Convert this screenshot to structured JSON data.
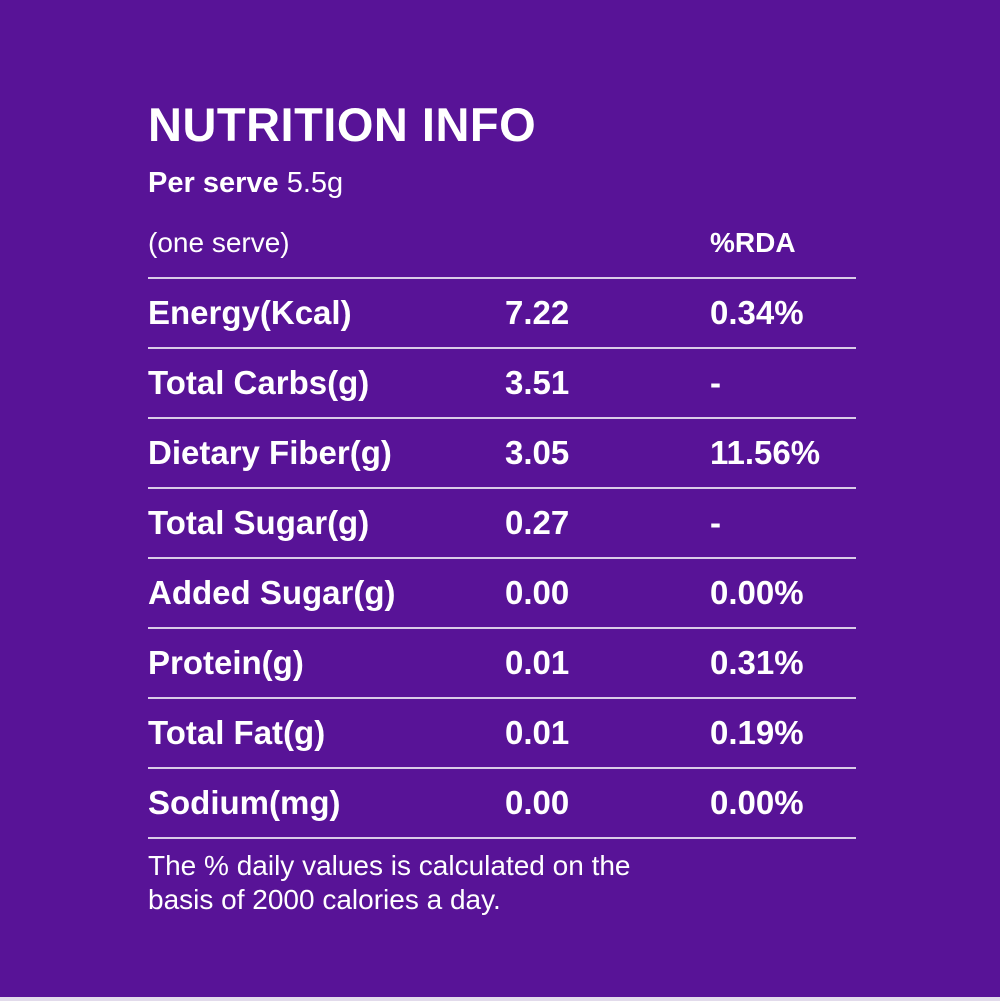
{
  "colors": {
    "background": "#581397",
    "text": "#FFFFFF",
    "divider": "#D9CCE8",
    "bottom_strip": "#E2DBEB"
  },
  "header": {
    "title": "NUTRITION INFO",
    "serve_label": "Per serve",
    "serve_value": "5.5g",
    "serve_note": "(one serve)",
    "rda_column_header": "%RDA"
  },
  "table": {
    "rows": [
      {
        "label": "Energy(Kcal)",
        "value": "7.22",
        "rda": "0.34%"
      },
      {
        "label": "Total Carbs(g)",
        "value": "3.51",
        "rda": "-"
      },
      {
        "label": "Dietary Fiber(g)",
        "value": "3.05",
        "rda": "11.56%"
      },
      {
        "label": "Total Sugar(g)",
        "value": "0.27",
        "rda": "-"
      },
      {
        "label": "Added Sugar(g)",
        "value": "0.00",
        "rda": "0.00%"
      },
      {
        "label": "Protein(g)",
        "value": "0.01",
        "rda": "0.31%"
      },
      {
        "label": "Total Fat(g)",
        "value": "0.01",
        "rda": "0.19%"
      },
      {
        "label": "Sodium(mg)",
        "value": "0.00",
        "rda": "0.00%"
      }
    ]
  },
  "footer": {
    "line1": "The % daily values is calculated on the",
    "line2": "basis of 2000 calories a day."
  }
}
